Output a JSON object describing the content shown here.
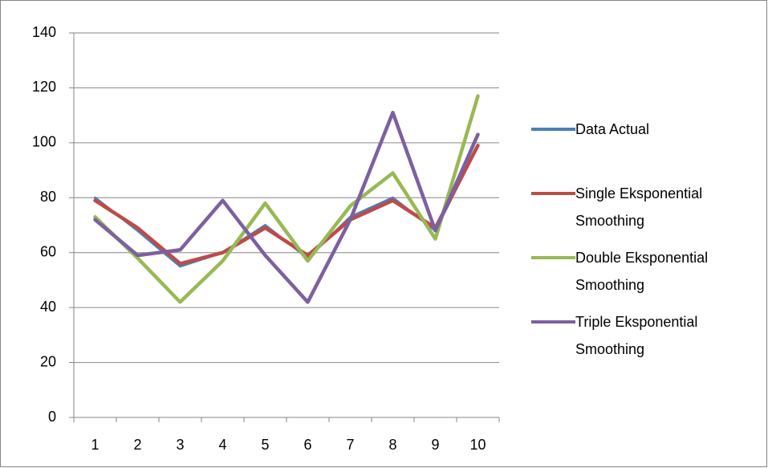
{
  "chart_data": {
    "type": "line",
    "categories": [
      "1",
      "2",
      "3",
      "4",
      "5",
      "6",
      "7",
      "8",
      "9",
      "10"
    ],
    "series": [
      {
        "name": "Data Actual",
        "color": "#4a7ebb",
        "values": [
          80,
          68,
          55,
          60,
          70,
          58,
          73,
          80,
          68,
          99
        ]
      },
      {
        "name": "Single Eksponential Smoothing",
        "color": "#be4b48",
        "values": [
          79,
          69,
          56,
          60,
          69,
          59,
          72,
          79,
          69,
          99
        ]
      },
      {
        "name": "Double Eksponential Smoothing",
        "color": "#98b954",
        "values": [
          73,
          58,
          42,
          57,
          78,
          57,
          77,
          89,
          65,
          117
        ]
      },
      {
        "name": "Triple Eksponential Smoothing",
        "color": "#7d60a0",
        "values": [
          72,
          59,
          61,
          79,
          59,
          42,
          72,
          111,
          68,
          103
        ]
      }
    ],
    "ylim": [
      0,
      140
    ],
    "yticks": [
      0,
      20,
      40,
      60,
      80,
      100,
      120,
      140
    ],
    "grid": true,
    "legend": "right"
  }
}
